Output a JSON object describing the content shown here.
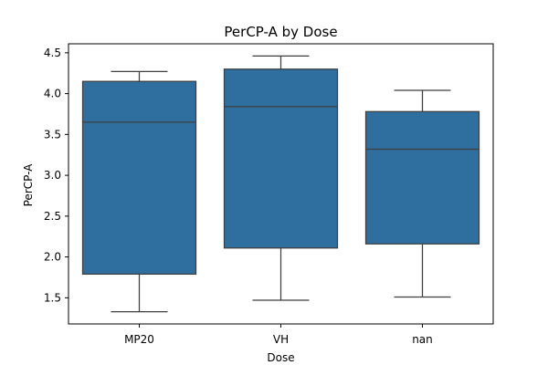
{
  "chart_data": {
    "type": "box",
    "title": "PerCP-A by Dose",
    "xlabel": "Dose",
    "ylabel": "PerCP-A",
    "categories": [
      "MP20",
      "VH",
      "nan"
    ],
    "boxes": [
      {
        "category": "MP20",
        "whisker_low": 1.33,
        "q1": 1.79,
        "median": 3.65,
        "q3": 4.15,
        "whisker_high": 4.27
      },
      {
        "category": "VH",
        "whisker_low": 1.47,
        "q1": 2.11,
        "median": 3.84,
        "q3": 4.3,
        "whisker_high": 4.46
      },
      {
        "category": "nan",
        "whisker_low": 1.51,
        "q1": 2.16,
        "median": 3.32,
        "q3": 3.78,
        "whisker_high": 4.04
      }
    ],
    "ylim": [
      1.18,
      4.61
    ],
    "yticks": [
      1.5,
      2.0,
      2.5,
      3.0,
      3.5,
      4.0,
      4.5
    ],
    "ytick_labels": [
      "1.5",
      "2.0",
      "2.5",
      "3.0",
      "3.5",
      "4.0",
      "4.5"
    ],
    "grid": false,
    "legend": "none",
    "box_color": "#2f6f9f",
    "line_color": "#3f3f3f"
  }
}
